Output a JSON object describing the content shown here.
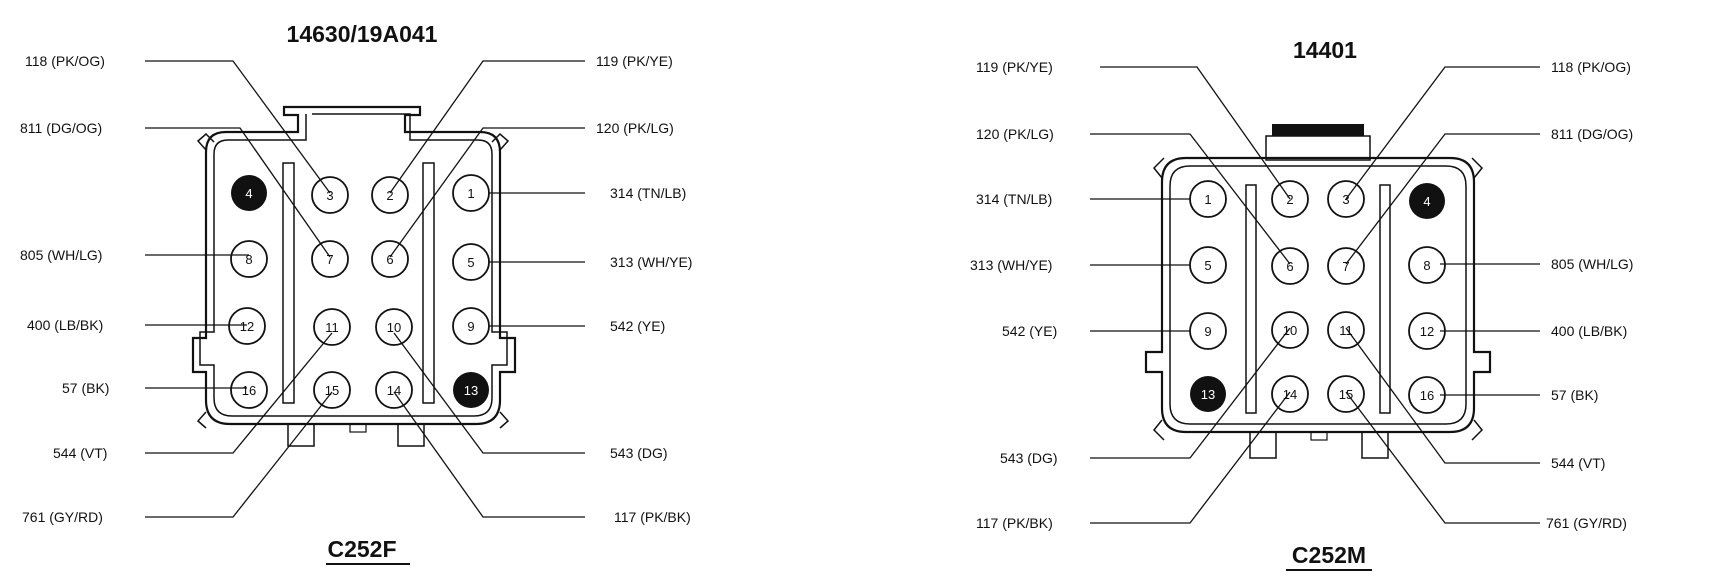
{
  "connectors": [
    {
      "part_number": "14630/19A041",
      "connector_id": "C252F",
      "filled_pins": [
        "4",
        "13"
      ],
      "pins": [
        {
          "pin": "1",
          "wire": "314 (TN/LB)"
        },
        {
          "pin": "2",
          "wire": "119 (PK/YE)"
        },
        {
          "pin": "3",
          "wire": "118 (PK/OG)"
        },
        {
          "pin": "4",
          "wire": ""
        },
        {
          "pin": "5",
          "wire": "313 (WH/YE)"
        },
        {
          "pin": "6",
          "wire": "120 (PK/LG)"
        },
        {
          "pin": "7",
          "wire": "811 (DG/OG)"
        },
        {
          "pin": "8",
          "wire": "805 (WH/LG)"
        },
        {
          "pin": "9",
          "wire": "542 (YE)"
        },
        {
          "pin": "10",
          "wire": "543 (DG)"
        },
        {
          "pin": "11",
          "wire": "544 (VT)"
        },
        {
          "pin": "12",
          "wire": "400 (LB/BK)"
        },
        {
          "pin": "13",
          "wire": ""
        },
        {
          "pin": "14",
          "wire": "117 (PK/BK)"
        },
        {
          "pin": "15",
          "wire": "761 (GY/RD)"
        },
        {
          "pin": "16",
          "wire": "57 (BK)"
        }
      ]
    },
    {
      "part_number": "14401",
      "connector_id": "C252M",
      "filled_pins": [
        "4",
        "13"
      ],
      "pins": [
        {
          "pin": "1",
          "wire": "314 (TN/LB)"
        },
        {
          "pin": "2",
          "wire": "119 (PK/YE)"
        },
        {
          "pin": "3",
          "wire": "118 (PK/OG)"
        },
        {
          "pin": "4",
          "wire": ""
        },
        {
          "pin": "5",
          "wire": "313 (WH/YE)"
        },
        {
          "pin": "6",
          "wire": "120 (PK/LG)"
        },
        {
          "pin": "7",
          "wire": "811 (DG/OG)"
        },
        {
          "pin": "8",
          "wire": "805 (WH/LG)"
        },
        {
          "pin": "9",
          "wire": "542 (YE)"
        },
        {
          "pin": "10",
          "wire": "543 (DG)"
        },
        {
          "pin": "11",
          "wire": "544 (VT)"
        },
        {
          "pin": "12",
          "wire": "400 (LB/BK)"
        },
        {
          "pin": "13",
          "wire": ""
        },
        {
          "pin": "14",
          "wire": "117 (PK/BK)"
        },
        {
          "pin": "15",
          "wire": "761 (GY/RD)"
        },
        {
          "pin": "16",
          "wire": "57 (BK)"
        }
      ]
    }
  ],
  "colors": {
    "ink": "#111111",
    "pin_filled": "#111111",
    "background": "#ffffff"
  }
}
